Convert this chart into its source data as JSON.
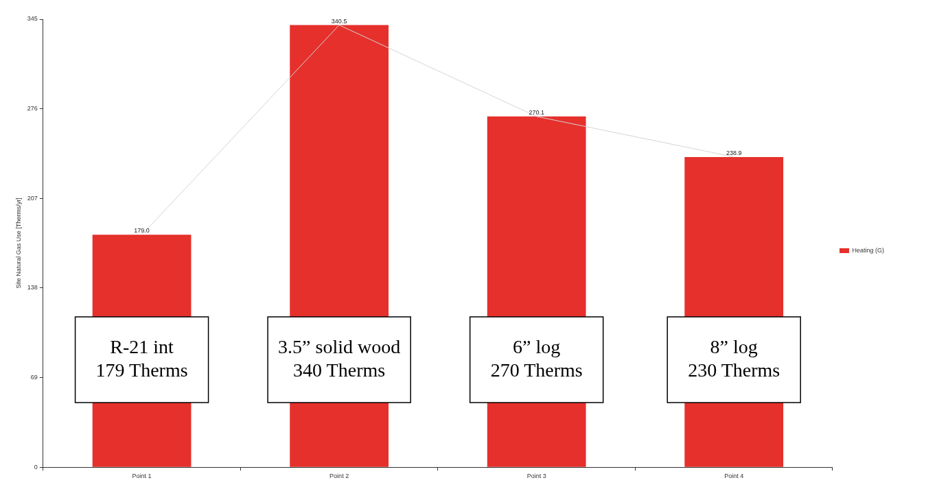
{
  "chart_data": {
    "type": "bar",
    "ylabel": "Site Natural Gas Use [Therms/yr]",
    "categories": [
      "Point 1",
      "Point 2",
      "Point 3",
      "Point 4"
    ],
    "series": [
      {
        "name": "Heating (G)",
        "color": "#e5302c",
        "values": [
          179.0,
          340.5,
          270.1,
          238.9
        ],
        "value_labels": [
          "179.0",
          "340.5",
          "270.1",
          "238.9"
        ]
      },
      {
        "type": "line",
        "color": "#d4d4d4",
        "values": [
          179.0,
          340.5,
          270.1,
          238.9
        ]
      }
    ],
    "ylim": [
      0,
      345
    ],
    "yticks": [
      0,
      69,
      138,
      207,
      276,
      345
    ],
    "grid": false,
    "legend": "right",
    "marker": "none",
    "annotations": [
      "R-21 int\n179 Therms",
      "3.5” solid wood\n340 Therms",
      "6” log\n270 Therms",
      "8” log\n230 Therms"
    ]
  }
}
